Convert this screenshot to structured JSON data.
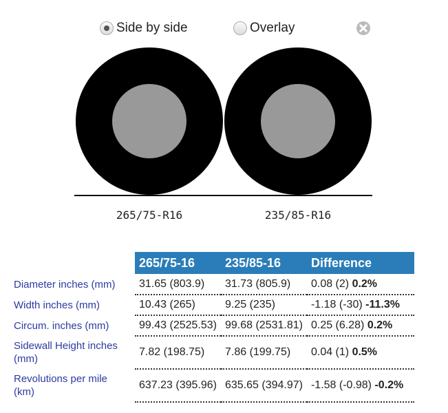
{
  "controls": {
    "options": [
      "Side by side",
      "Overlay"
    ],
    "selected": 0
  },
  "tires": [
    {
      "label": "265/75-R16"
    },
    {
      "label": "235/85-R16"
    }
  ],
  "table": {
    "headers": [
      "265/75-16",
      "235/85-16",
      "Difference"
    ],
    "rows": [
      {
        "label": "Diameter inches (mm)",
        "tire1": "31.65 (803.9)",
        "tire2": "31.73 (805.9)",
        "diff": "0.08 (2)",
        "diff_pct": "0.2%"
      },
      {
        "label": "Width inches (mm)",
        "tire1": "10.43 (265)",
        "tire2": "9.25 (235)",
        "diff": "-1.18 (-30)",
        "diff_pct": "-11.3%"
      },
      {
        "label": "Circum. inches (mm)",
        "tire1": "99.43 (2525.53)",
        "tire2": "99.68 (2531.81)",
        "diff": "0.25 (6.28)",
        "diff_pct": "0.2%"
      },
      {
        "label": "Sidewall Height inches (mm)",
        "tire1": "7.82 (198.75)",
        "tire2": "7.86 (199.75)",
        "diff": "0.04 (1)",
        "diff_pct": "0.5%"
      },
      {
        "label": "Revolutions per mile (km)",
        "tire1": "637.23 (395.96)",
        "tire2": "635.65 (394.97)",
        "diff": "-1.58 (-0.98)",
        "diff_pct": "-0.2%"
      }
    ]
  }
}
